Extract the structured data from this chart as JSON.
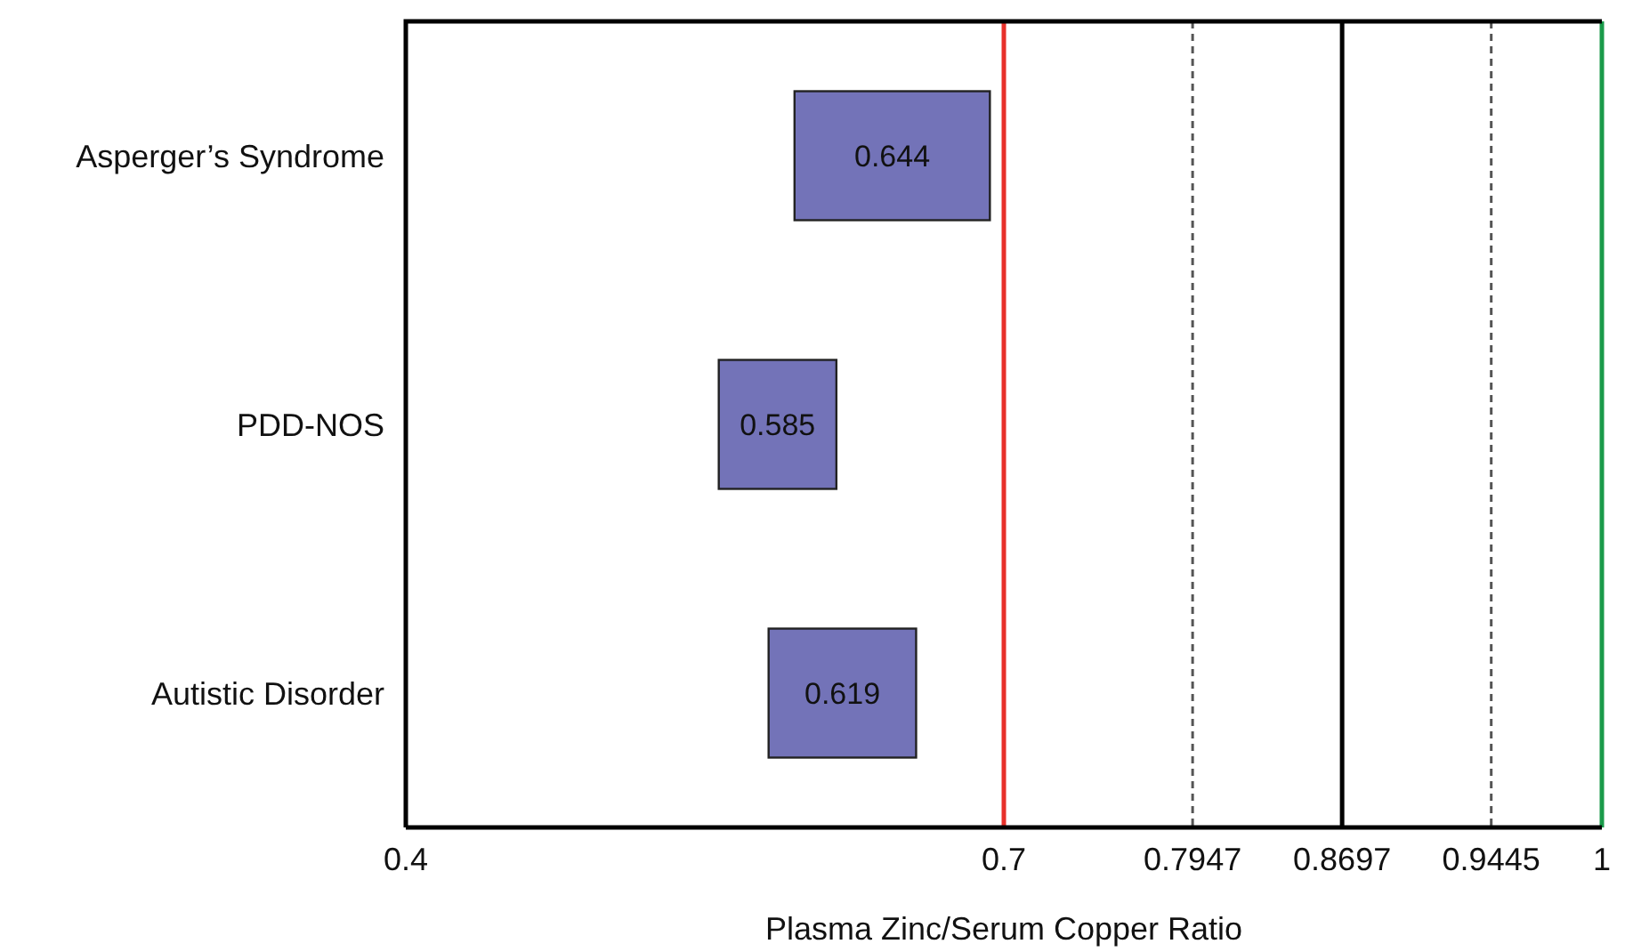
{
  "chart_data": {
    "type": "bar",
    "orientation": "horizontal",
    "xlabel": "Plasma Zinc/Serum Copper Ratio",
    "categories": [
      "Asperger’s Syndrome",
      "PDD-NOS",
      "Autistic Disorder"
    ],
    "base": [
      0.595,
      0.557,
      0.582
    ],
    "values": [
      0.098,
      0.059,
      0.074
    ],
    "annotations": [
      "0.644",
      "0.585",
      "0.619"
    ],
    "color": "#7373b8",
    "xlim": [
      0.4,
      1
    ],
    "xticks": [
      0.4,
      0.7,
      0.7947,
      0.8697,
      0.9445,
      1
    ],
    "ref_lines": [
      {
        "axis": "x",
        "value": 0.7,
        "color": "#e8302a",
        "line_style": "solid"
      },
      {
        "axis": "x",
        "value": 0.7947,
        "color": "#555555",
        "line_style": "dashed"
      },
      {
        "axis": "x",
        "value": 0.8697,
        "color": "#000000",
        "line_style": "solid"
      },
      {
        "axis": "x",
        "value": 0.9445,
        "color": "#555555",
        "line_style": "dashed"
      },
      {
        "axis": "x",
        "value": 1,
        "color": "#1a9a4a",
        "line_style": "solid"
      }
    ],
    "grid": false
  }
}
